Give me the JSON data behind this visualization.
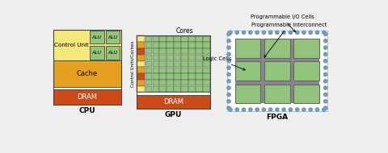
{
  "bg_color": "#eeeeee",
  "cpu_label": "CPU",
  "gpu_label": "GPU",
  "fpga_label": "FPGA",
  "color_light_yellow": "#f5e87a",
  "color_green": "#93c47d",
  "color_orange": "#e6a020",
  "color_dark_orange": "#cc4a18",
  "color_white": "#ffffff",
  "color_dark": "#444444",
  "color_blue_dot": "#7799bb",
  "annotation_io": "Programmable I/O Cells",
  "annotation_logic": "Logic Cells",
  "annotation_interconnect": "Programmable Interconnect",
  "cores_label": "Cores",
  "control_label": "Control Units/Caches",
  "dram_label": "DRAM",
  "cache_label": "Cache",
  "control_unit_label": "Control Unit",
  "alu_label": "ALU"
}
